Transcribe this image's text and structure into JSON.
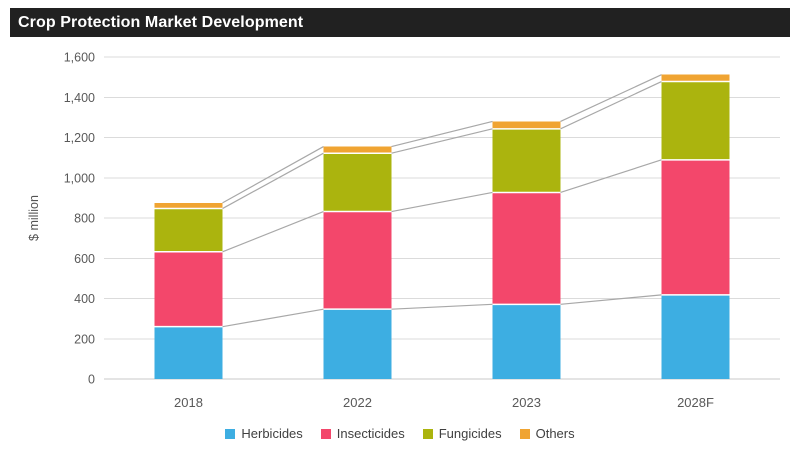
{
  "title": "Crop Protection Market Development",
  "chart_data": {
    "type": "bar",
    "stacked": true,
    "title": "Crop Protection Market Development",
    "categories": [
      "2018",
      "2022",
      "2023",
      "2028F"
    ],
    "series": [
      {
        "name": "Herbicides",
        "color": "#3DAEE2",
        "values": [
          260,
          347,
          371,
          418
        ]
      },
      {
        "name": "Insecticides",
        "color": "#F3476B",
        "values": [
          372,
          485,
          556,
          671
        ]
      },
      {
        "name": "Fungicides",
        "color": "#ABB40E",
        "values": [
          215,
          290,
          316,
          389
        ]
      },
      {
        "name": "Others",
        "color": "#F0A432",
        "values": [
          28,
          33,
          37,
          34
        ]
      }
    ],
    "totals": [
      875,
      1155,
      1280,
      1512
    ],
    "xlabel": "",
    "ylabel": "$ million",
    "ylim": [
      0,
      1600
    ],
    "ytick_step": 200,
    "ytick_labels": [
      "0",
      "200",
      "400",
      "600",
      "800",
      "1,000",
      "1,200",
      "1,400",
      "1,600"
    ],
    "grid": true,
    "series_lines": true,
    "legend_position": "bottom"
  },
  "styles": {
    "title_bg": "#212121",
    "title_color": "#FFFFFF",
    "gridline_color": "#DBDBDB",
    "axis_line_color": "#C9C9C9",
    "series_line_color": "#A8A8A8",
    "tick_text_color": "#595959",
    "axis_title_color": "#545454",
    "legend_text_color": "#404040",
    "segment_gap_color": "#FFFFFF",
    "background": "#FFFFFF"
  }
}
